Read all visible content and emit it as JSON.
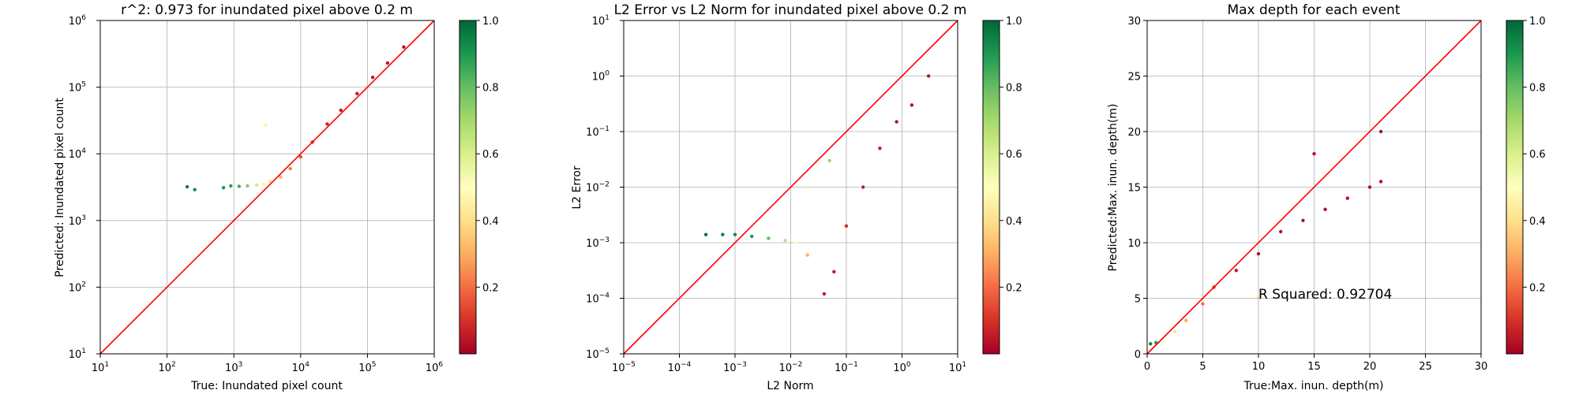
{
  "chart_data": [
    {
      "type": "scatter",
      "title": "r^2: 0.973 for inundated pixel above 0.2 m",
      "xlabel": "True: Inundated pixel count",
      "ylabel": "Predicted: Inundated pixel count",
      "xscale": "log",
      "yscale": "log",
      "xlim": [
        10,
        1000000
      ],
      "ylim": [
        10,
        1000000
      ],
      "xticks": [
        {
          "v": 10,
          "b": "10",
          "e": "1"
        },
        {
          "v": 100,
          "b": "10",
          "e": "2"
        },
        {
          "v": 1000,
          "b": "10",
          "e": "3"
        },
        {
          "v": 10000,
          "b": "10",
          "e": "4"
        },
        {
          "v": 100000,
          "b": "10",
          "e": "5"
        },
        {
          "v": 1000000,
          "b": "10",
          "e": "6"
        }
      ],
      "yticks": [
        {
          "v": 10,
          "b": "10",
          "e": "1"
        },
        {
          "v": 100,
          "b": "10",
          "e": "2"
        },
        {
          "v": 1000,
          "b": "10",
          "e": "3"
        },
        {
          "v": 10000,
          "b": "10",
          "e": "4"
        },
        {
          "v": 100000,
          "b": "10",
          "e": "5"
        },
        {
          "v": 1000000,
          "b": "10",
          "e": "6"
        }
      ],
      "grid": true,
      "reference_line": {
        "color": "#ff0000",
        "from": [
          10,
          10
        ],
        "to": [
          1000000,
          1000000
        ]
      },
      "colorbar": {
        "cmap": "RdYlGn",
        "range": [
          0.0,
          1.0
        ],
        "ticks": [
          "0.2",
          "0.4",
          "0.6",
          "0.8",
          "1.0"
        ],
        "tick_values": [
          0.2,
          0.4,
          0.6,
          0.8,
          1.0
        ]
      },
      "points_sample": [
        {
          "x": 200,
          "y": 3200,
          "c": 0.95
        },
        {
          "x": 260,
          "y": 2900,
          "c": 0.92
        },
        {
          "x": 700,
          "y": 3100,
          "c": 0.9
        },
        {
          "x": 900,
          "y": 3300,
          "c": 0.88
        },
        {
          "x": 1200,
          "y": 3250,
          "c": 0.85
        },
        {
          "x": 1600,
          "y": 3300,
          "c": 0.75
        },
        {
          "x": 2200,
          "y": 3400,
          "c": 0.62
        },
        {
          "x": 2800,
          "y": 3500,
          "c": 0.45
        },
        {
          "x": 3500,
          "y": 3900,
          "c": 0.4
        },
        {
          "x": 5000,
          "y": 4500,
          "c": 0.3
        },
        {
          "x": 7000,
          "y": 6000,
          "c": 0.22
        },
        {
          "x": 10000,
          "y": 9000,
          "c": 0.15
        },
        {
          "x": 15000,
          "y": 15000,
          "c": 0.1
        },
        {
          "x": 25000,
          "y": 28000,
          "c": 0.08
        },
        {
          "x": 40000,
          "y": 45000,
          "c": 0.06
        },
        {
          "x": 70000,
          "y": 80000,
          "c": 0.05
        },
        {
          "x": 120000,
          "y": 140000,
          "c": 0.04
        },
        {
          "x": 200000,
          "y": 230000,
          "c": 0.03
        },
        {
          "x": 350000,
          "y": 400000,
          "c": 0.03
        },
        {
          "x": 3000,
          "y": 27000,
          "c": 0.45
        }
      ]
    },
    {
      "type": "scatter",
      "title": "L2 Error vs L2 Norm for inundated pixel above 0.2 m",
      "xlabel": "L2 Norm",
      "ylabel": "L2 Error",
      "xscale": "log",
      "yscale": "log",
      "xlim": [
        1e-05,
        10
      ],
      "ylim": [
        1e-05,
        10
      ],
      "xticks": [
        {
          "v": 1e-05,
          "b": "10",
          "e": "−5"
        },
        {
          "v": 0.0001,
          "b": "10",
          "e": "−4"
        },
        {
          "v": 0.001,
          "b": "10",
          "e": "−3"
        },
        {
          "v": 0.01,
          "b": "10",
          "e": "−2"
        },
        {
          "v": 0.1,
          "b": "10",
          "e": "−1"
        },
        {
          "v": 1,
          "b": "10",
          "e": "0"
        },
        {
          "v": 10,
          "b": "10",
          "e": "1"
        }
      ],
      "yticks": [
        {
          "v": 1e-05,
          "b": "10",
          "e": "−5"
        },
        {
          "v": 0.0001,
          "b": "10",
          "e": "−4"
        },
        {
          "v": 0.001,
          "b": "10",
          "e": "−3"
        },
        {
          "v": 0.01,
          "b": "10",
          "e": "−2"
        },
        {
          "v": 0.1,
          "b": "10",
          "e": "−1"
        },
        {
          "v": 1,
          "b": "10",
          "e": "0"
        },
        {
          "v": 10,
          "b": "10",
          "e": "1"
        }
      ],
      "grid": true,
      "reference_line": {
        "color": "#ff0000",
        "from": [
          1e-05,
          1e-05
        ],
        "to": [
          10,
          10
        ]
      },
      "colorbar": {
        "cmap": "RdYlGn",
        "range": [
          0.0,
          1.0
        ],
        "ticks": [
          "0.2",
          "0.4",
          "0.6",
          "0.8",
          "1.0"
        ],
        "tick_values": [
          0.2,
          0.4,
          0.6,
          0.8,
          1.0
        ]
      },
      "points_sample": [
        {
          "x": 0.0003,
          "y": 0.0014,
          "c": 0.97
        },
        {
          "x": 0.0006,
          "y": 0.0014,
          "c": 0.95
        },
        {
          "x": 0.001,
          "y": 0.0014,
          "c": 0.93
        },
        {
          "x": 0.002,
          "y": 0.0013,
          "c": 0.9
        },
        {
          "x": 0.004,
          "y": 0.0012,
          "c": 0.8
        },
        {
          "x": 0.008,
          "y": 0.0011,
          "c": 0.65
        },
        {
          "x": 0.012,
          "y": 0.001,
          "c": 0.5
        },
        {
          "x": 0.02,
          "y": 0.0006,
          "c": 0.3
        },
        {
          "x": 0.04,
          "y": 0.00012,
          "c": 0.05
        },
        {
          "x": 0.06,
          "y": 0.0003,
          "c": 0.05
        },
        {
          "x": 0.1,
          "y": 0.002,
          "c": 0.08
        },
        {
          "x": 0.2,
          "y": 0.01,
          "c": 0.06
        },
        {
          "x": 0.4,
          "y": 0.05,
          "c": 0.05
        },
        {
          "x": 0.8,
          "y": 0.15,
          "c": 0.04
        },
        {
          "x": 1.5,
          "y": 0.3,
          "c": 0.03
        },
        {
          "x": 3,
          "y": 1.0,
          "c": 0.03
        },
        {
          "x": 0.02,
          "y": 0.01,
          "c": 0.45
        },
        {
          "x": 0.05,
          "y": 0.03,
          "c": 0.7
        }
      ]
    },
    {
      "type": "scatter",
      "title": "Max depth for each event",
      "xlabel": "True:Max. inun. depth(m)",
      "ylabel": "Predicted:Max. inun. depth(m)",
      "annotation": "R Squared: 0.92704",
      "xscale": "linear",
      "yscale": "linear",
      "xlim": [
        0,
        30
      ],
      "ylim": [
        0,
        30
      ],
      "xticks": [
        {
          "v": 0,
          "t": "0"
        },
        {
          "v": 5,
          "t": "5"
        },
        {
          "v": 10,
          "t": "10"
        },
        {
          "v": 15,
          "t": "15"
        },
        {
          "v": 20,
          "t": "20"
        },
        {
          "v": 25,
          "t": "25"
        },
        {
          "v": 30,
          "t": "30"
        }
      ],
      "yticks": [
        {
          "v": 0,
          "t": "0"
        },
        {
          "v": 5,
          "t": "5"
        },
        {
          "v": 10,
          "t": "10"
        },
        {
          "v": 15,
          "t": "15"
        },
        {
          "v": 20,
          "t": "20"
        },
        {
          "v": 25,
          "t": "25"
        },
        {
          "v": 30,
          "t": "30"
        }
      ],
      "grid": true,
      "reference_line": {
        "color": "#ff0000",
        "from": [
          0,
          0
        ],
        "to": [
          30,
          30
        ]
      },
      "colorbar": {
        "cmap": "RdYlGn",
        "range": [
          0.0,
          1.0
        ],
        "ticks": [
          "0.2",
          "0.4",
          "0.6",
          "0.8",
          "1.0"
        ],
        "tick_values": [
          0.2,
          0.4,
          0.6,
          0.8,
          1.0
        ]
      },
      "points_sample": [
        {
          "x": 0.3,
          "y": 0.9,
          "c": 0.95
        },
        {
          "x": 0.8,
          "y": 1.0,
          "c": 0.9
        },
        {
          "x": 1.5,
          "y": 1.2,
          "c": 0.5
        },
        {
          "x": 2.5,
          "y": 2.0,
          "c": 0.4
        },
        {
          "x": 3.5,
          "y": 3.0,
          "c": 0.3
        },
        {
          "x": 5,
          "y": 4.5,
          "c": 0.2
        },
        {
          "x": 6,
          "y": 6,
          "c": 0.1
        },
        {
          "x": 8,
          "y": 7.5,
          "c": 0.05
        },
        {
          "x": 10,
          "y": 9,
          "c": 0.04
        },
        {
          "x": 12,
          "y": 11,
          "c": 0.03
        },
        {
          "x": 14,
          "y": 12,
          "c": 0.03
        },
        {
          "x": 16,
          "y": 13,
          "c": 0.03
        },
        {
          "x": 18,
          "y": 14,
          "c": 0.03
        },
        {
          "x": 20,
          "y": 15,
          "c": 0.03
        },
        {
          "x": 21,
          "y": 15.5,
          "c": 0.03
        },
        {
          "x": 21,
          "y": 20,
          "c": 0.03
        },
        {
          "x": 15,
          "y": 18,
          "c": 0.03
        },
        {
          "x": 10,
          "y": 5,
          "c": 0.35
        }
      ]
    }
  ]
}
